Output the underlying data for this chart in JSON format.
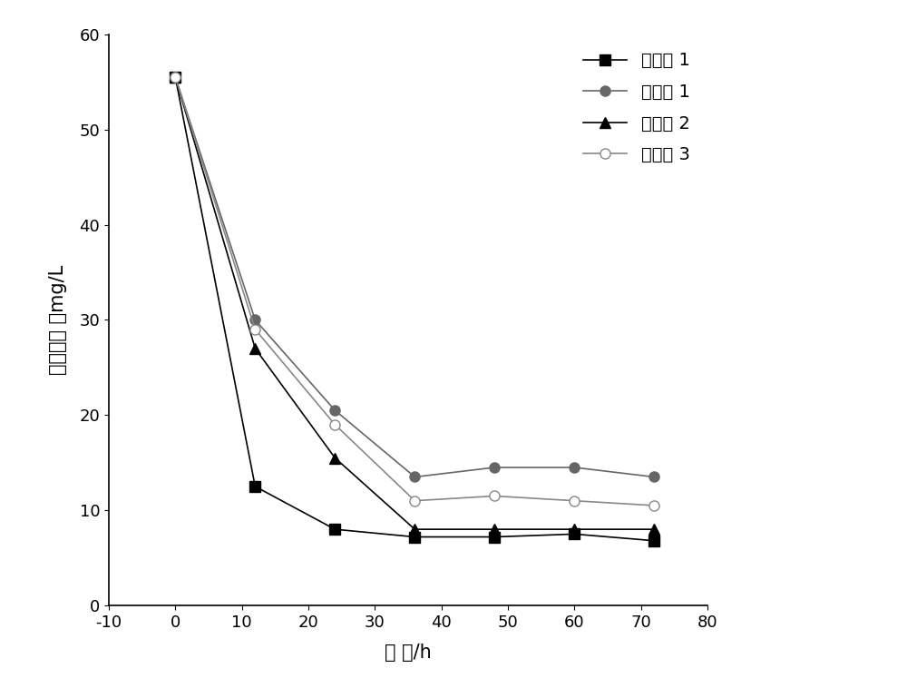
{
  "series": [
    {
      "label": "实施例 1",
      "x": [
        0,
        12,
        24,
        36,
        48,
        60,
        72
      ],
      "y": [
        55.5,
        12.5,
        8.0,
        7.2,
        7.2,
        7.5,
        6.8
      ],
      "marker": "s",
      "color": "#000000",
      "markerface": "#000000",
      "linestyle": "-",
      "linewidth": 1.2
    },
    {
      "label": "对照例 1",
      "x": [
        0,
        12,
        24,
        36,
        48,
        60,
        72
      ],
      "y": [
        55.5,
        30.0,
        20.5,
        13.5,
        14.5,
        14.5,
        13.5
      ],
      "marker": "o",
      "color": "#666666",
      "markerface": "#666666",
      "linestyle": "-",
      "linewidth": 1.2
    },
    {
      "label": "对照例 2",
      "x": [
        0,
        12,
        24,
        36,
        48,
        60,
        72
      ],
      "y": [
        55.5,
        27.0,
        15.5,
        8.0,
        8.0,
        8.0,
        8.0
      ],
      "marker": "^",
      "color": "#000000",
      "markerface": "#000000",
      "linestyle": "-",
      "linewidth": 1.2
    },
    {
      "label": "对照例 3",
      "x": [
        0,
        12,
        24,
        36,
        48,
        60,
        72
      ],
      "y": [
        55.5,
        29.0,
        19.0,
        11.0,
        11.5,
        11.0,
        10.5
      ],
      "marker": "o",
      "color": "#888888",
      "markerface": "#ffffff",
      "linestyle": "-",
      "linewidth": 1.2
    }
  ],
  "xlabel": "时 间/h",
  "ylabel": "硬酸盐浓 度mg/L",
  "xlim": [
    -10,
    80
  ],
  "ylim": [
    0,
    60
  ],
  "xticks": [
    -10,
    0,
    10,
    20,
    30,
    40,
    50,
    60,
    70,
    80
  ],
  "yticks": [
    0,
    10,
    20,
    30,
    40,
    50,
    60
  ],
  "legend_loc": "upper right",
  "background_color": "#ffffff",
  "xlabel_fontsize": 15,
  "ylabel_fontsize": 15,
  "tick_fontsize": 13,
  "legend_fontsize": 14,
  "marker_size": 8
}
